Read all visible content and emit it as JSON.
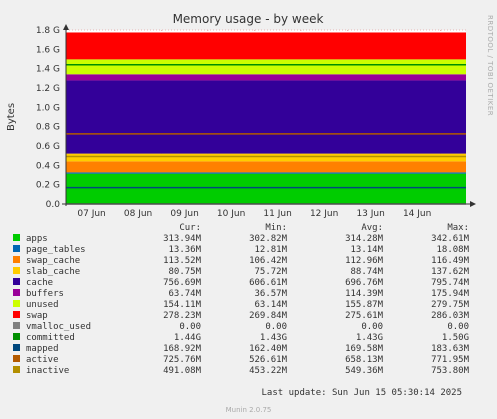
{
  "chart_data": {
    "type": "area",
    "title": "Memory usage - by week",
    "ylabel": "Bytes",
    "side_label": "RRDTOOL / TOBI OETIKER",
    "ylim": [
      0,
      1800000000.0
    ],
    "y_ticks": [
      {
        "value": 0,
        "label": "0.0"
      },
      {
        "value": 200000000.0,
        "label": "0.2 G"
      },
      {
        "value": 400000000.0,
        "label": "0.4 G"
      },
      {
        "value": 600000000.0,
        "label": "0.6 G"
      },
      {
        "value": 800000000.0,
        "label": "0.8 G"
      },
      {
        "value": 1000000000.0,
        "label": "1.0 G"
      },
      {
        "value": 1200000000.0,
        "label": "1.2 G"
      },
      {
        "value": 1400000000.0,
        "label": "1.4 G"
      },
      {
        "value": 1600000000.0,
        "label": "1.6 G"
      },
      {
        "value": 1800000000.0,
        "label": "1.8 G"
      }
    ],
    "x_ticks": [
      "07 Jun",
      "08 Jun",
      "09 Jun",
      "10 Jun",
      "11 Jun",
      "12 Jun",
      "13 Jun",
      "14 Jun"
    ],
    "grid": true,
    "columns": [
      "Cur:",
      "Min:",
      "Avg:",
      "Max:"
    ],
    "series": [
      {
        "name": "apps",
        "color": "#00cc00",
        "kind": "stack",
        "cur": "313.94M",
        "min": "302.82M",
        "avg": "314.28M",
        "max": "342.61M",
        "value": 313940000.0
      },
      {
        "name": "page_tables",
        "color": "#0066b3",
        "kind": "stack",
        "cur": "13.36M",
        "min": "12.81M",
        "avg": "13.14M",
        "max": "18.08M",
        "value": 13360000.0
      },
      {
        "name": "swap_cache",
        "color": "#ff8000",
        "kind": "stack",
        "cur": "113.52M",
        "min": "106.42M",
        "avg": "112.96M",
        "max": "116.49M",
        "value": 113520000.0
      },
      {
        "name": "slab_cache",
        "color": "#ffcc00",
        "kind": "stack",
        "cur": "80.75M",
        "min": "75.72M",
        "avg": "88.74M",
        "max": "137.62M",
        "value": 80750000.0
      },
      {
        "name": "cache",
        "color": "#330099",
        "kind": "stack",
        "cur": "756.69M",
        "min": "606.61M",
        "avg": "696.76M",
        "max": "795.74M",
        "value": 756690000.0
      },
      {
        "name": "buffers",
        "color": "#990099",
        "kind": "stack",
        "cur": "63.74M",
        "min": "36.57M",
        "avg": "114.39M",
        "max": "175.94M",
        "value": 63740000.0
      },
      {
        "name": "unused",
        "color": "#ccff00",
        "kind": "stack",
        "cur": "154.11M",
        "min": "63.14M",
        "avg": "155.87M",
        "max": "279.75M",
        "value": 154110000.0
      },
      {
        "name": "swap",
        "color": "#ff0000",
        "kind": "stack",
        "cur": "278.23M",
        "min": "269.84M",
        "avg": "275.61M",
        "max": "286.03M",
        "value": 278230000.0
      },
      {
        "name": "vmalloc_used",
        "color": "#808080",
        "kind": "line",
        "cur": "0.00",
        "min": "0.00",
        "avg": "0.00",
        "max": "0.00",
        "value": 0
      },
      {
        "name": "committed",
        "color": "#008f00",
        "kind": "line",
        "cur": "1.44G",
        "min": "1.43G",
        "avg": "1.43G",
        "max": "1.50G",
        "value": 1440000000.0
      },
      {
        "name": "mapped",
        "color": "#00487d",
        "kind": "line",
        "cur": "168.92M",
        "min": "162.40M",
        "avg": "169.58M",
        "max": "183.63M",
        "value": 168920000.0
      },
      {
        "name": "active",
        "color": "#b35a00",
        "kind": "line",
        "cur": "725.76M",
        "min": "526.61M",
        "avg": "658.13M",
        "max": "771.95M",
        "value": 725760000.0
      },
      {
        "name": "inactive",
        "color": "#b38f00",
        "kind": "line",
        "cur": "491.08M",
        "min": "453.22M",
        "avg": "549.36M",
        "max": "753.80M",
        "value": 491080000.0
      }
    ]
  },
  "footer": {
    "last_update": "Last update: Sun Jun 15 05:30:14 2025",
    "version": "Munin 2.0.75"
  }
}
